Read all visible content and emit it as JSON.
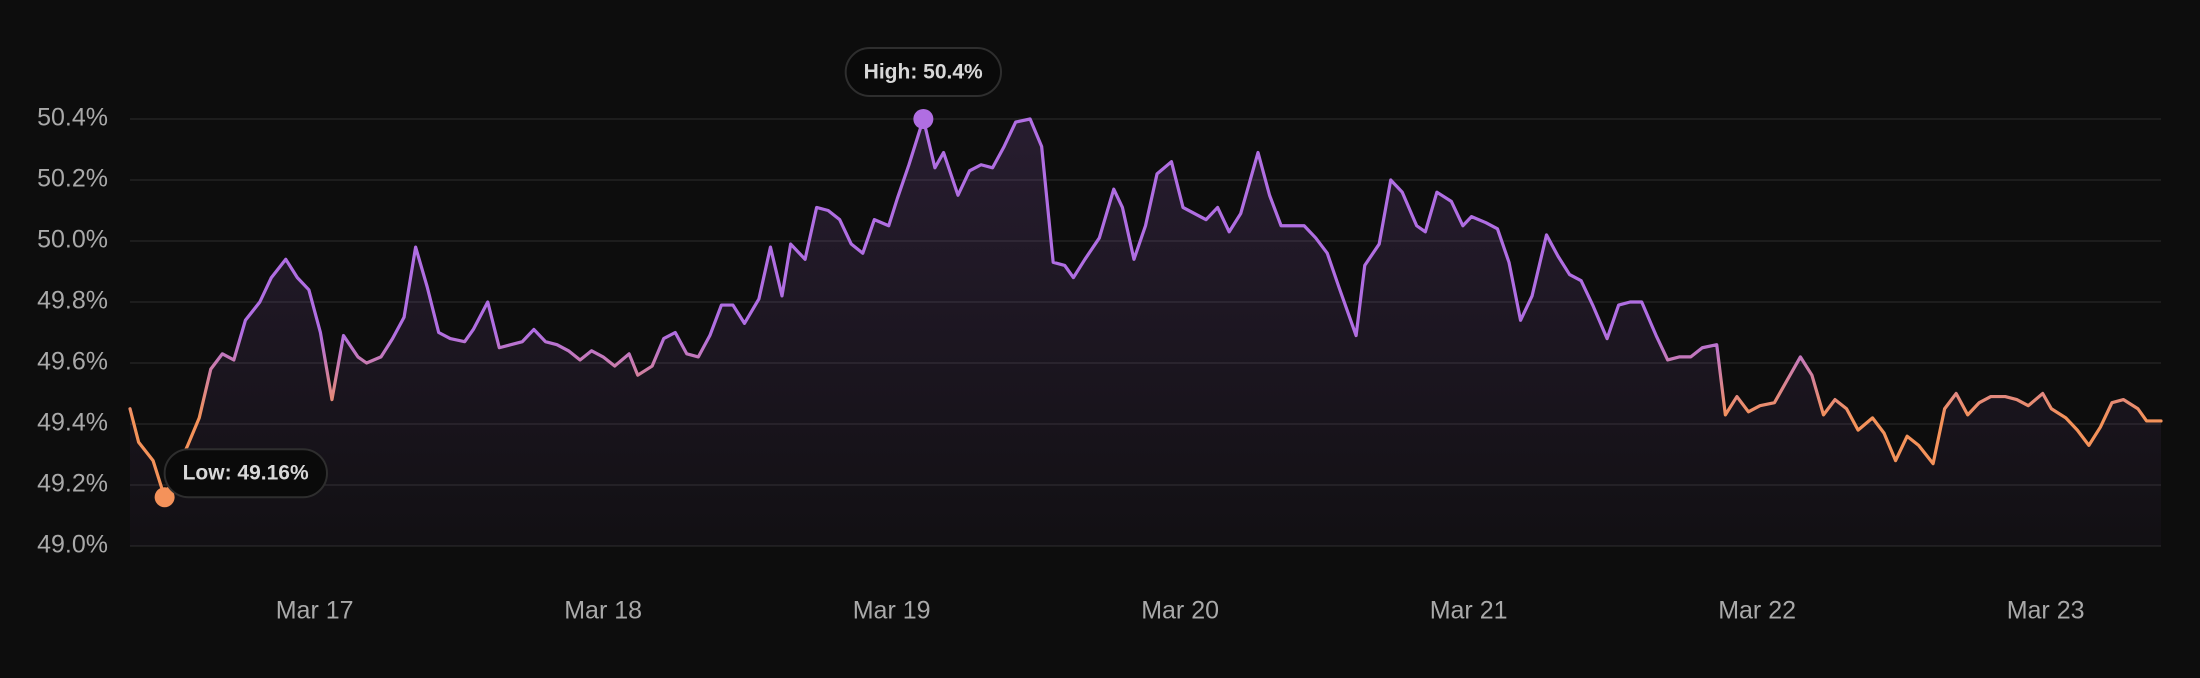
{
  "chart_data": {
    "type": "line",
    "x": [
      16.36,
      16.39,
      16.44,
      16.48,
      16.56,
      16.6,
      16.64,
      16.68,
      16.72,
      16.76,
      16.81,
      16.85,
      16.9,
      16.94,
      16.98,
      17.02,
      17.06,
      17.1,
      17.15,
      17.18,
      17.23,
      17.27,
      17.31,
      17.35,
      17.39,
      17.43,
      17.47,
      17.52,
      17.55,
      17.6,
      17.64,
      17.68,
      17.72,
      17.76,
      17.8,
      17.84,
      17.88,
      17.92,
      17.96,
      18.0,
      18.04,
      18.09,
      18.12,
      18.17,
      18.21,
      18.25,
      18.29,
      18.33,
      18.37,
      18.41,
      18.45,
      18.49,
      18.54,
      18.58,
      18.62,
      18.65,
      18.7,
      18.74,
      18.78,
      18.82,
      18.86,
      18.9,
      18.94,
      18.99,
      19.02,
      19.06,
      19.11,
      19.15,
      19.18,
      19.23,
      19.27,
      19.31,
      19.35,
      19.39,
      19.43,
      19.48,
      19.52,
      19.56,
      19.6,
      19.63,
      19.67,
      19.72,
      19.77,
      19.8,
      19.84,
      19.88,
      19.92,
      19.97,
      20.01,
      20.05,
      20.09,
      20.13,
      20.17,
      20.21,
      20.27,
      20.31,
      20.35,
      20.39,
      20.43,
      20.47,
      20.51,
      20.55,
      20.61,
      20.64,
      20.69,
      20.73,
      20.77,
      20.82,
      20.85,
      20.89,
      20.94,
      20.98,
      21.01,
      21.06,
      21.1,
      21.14,
      21.18,
      21.22,
      21.27,
      21.31,
      21.35,
      21.39,
      21.43,
      21.48,
      21.52,
      21.56,
      21.6,
      21.65,
      21.69,
      21.73,
      21.77,
      21.81,
      21.86,
      21.89,
      21.93,
      21.97,
      22.01,
      22.06,
      22.09,
      22.15,
      22.19,
      22.23,
      22.27,
      22.31,
      22.35,
      22.4,
      22.44,
      22.48,
      22.52,
      22.56,
      22.61,
      22.65,
      22.69,
      22.73,
      22.77,
      22.81,
      22.86,
      22.9,
      22.94,
      22.99,
      23.02,
      23.07,
      23.11,
      23.15,
      23.19,
      23.23,
      23.27,
      23.32,
      23.35,
      23.4
    ],
    "values": [
      49.45,
      49.34,
      49.28,
      49.16,
      49.33,
      49.42,
      49.58,
      49.63,
      49.61,
      49.74,
      49.8,
      49.88,
      49.94,
      49.88,
      49.84,
      49.7,
      49.48,
      49.69,
      49.62,
      49.6,
      49.62,
      49.68,
      49.75,
      49.98,
      49.85,
      49.7,
      49.68,
      49.67,
      49.71,
      49.8,
      49.65,
      49.66,
      49.67,
      49.71,
      49.67,
      49.66,
      49.64,
      49.61,
      49.64,
      49.62,
      49.59,
      49.63,
      49.56,
      49.59,
      49.68,
      49.7,
      49.63,
      49.62,
      49.69,
      49.79,
      49.79,
      49.73,
      49.81,
      49.98,
      49.82,
      49.99,
      49.94,
      50.11,
      50.1,
      50.07,
      49.99,
      49.96,
      50.07,
      50.05,
      50.14,
      50.25,
      50.4,
      50.24,
      50.29,
      50.15,
      50.23,
      50.25,
      50.24,
      50.31,
      50.39,
      50.4,
      50.31,
      49.93,
      49.92,
      49.88,
      49.94,
      50.01,
      50.17,
      50.11,
      49.94,
      50.05,
      50.22,
      50.26,
      50.11,
      50.09,
      50.07,
      50.11,
      50.03,
      50.09,
      50.29,
      50.15,
      50.05,
      50.05,
      50.05,
      50.01,
      49.96,
      49.85,
      49.69,
      49.92,
      49.99,
      50.2,
      50.16,
      50.05,
      50.03,
      50.16,
      50.13,
      50.05,
      50.08,
      50.06,
      50.04,
      49.93,
      49.74,
      49.82,
      50.02,
      49.95,
      49.89,
      49.87,
      49.79,
      49.68,
      49.79,
      49.8,
      49.8,
      49.69,
      49.61,
      49.62,
      49.62,
      49.65,
      49.66,
      49.43,
      49.49,
      49.44,
      49.46,
      49.47,
      49.52,
      49.62,
      49.56,
      49.43,
      49.48,
      49.45,
      49.38,
      49.42,
      49.37,
      49.28,
      49.36,
      49.33,
      49.27,
      49.45,
      49.5,
      49.43,
      49.47,
      49.49,
      49.49,
      49.48,
      49.46,
      49.5,
      49.45,
      49.42,
      49.38,
      49.33,
      49.39,
      49.47,
      49.48,
      49.45,
      49.41,
      49.41
    ],
    "colors": [
      "#f4925a",
      "#b06ee2"
    ],
    "xlim": [
      16.36,
      23.4
    ],
    "xticks": [
      {
        "value": 17,
        "label": "Mar 17"
      },
      {
        "value": 18,
        "label": "Mar 18"
      },
      {
        "value": 19,
        "label": "Mar 19"
      },
      {
        "value": 20,
        "label": "Mar 20"
      },
      {
        "value": 21,
        "label": "Mar 21"
      },
      {
        "value": 22,
        "label": "Mar 22"
      },
      {
        "value": 23,
        "label": "Mar 23"
      }
    ],
    "ylim": [
      49.0,
      50.4
    ],
    "yticks": [
      {
        "value": 49.0,
        "label": "49.0%"
      },
      {
        "value": 49.2,
        "label": "49.2%"
      },
      {
        "value": 49.4,
        "label": "49.4%"
      },
      {
        "value": 49.6,
        "label": "49.6%"
      },
      {
        "value": 49.8,
        "label": "49.8%"
      },
      {
        "value": 50.0,
        "label": "50.0%"
      },
      {
        "value": 50.2,
        "label": "50.2%"
      },
      {
        "value": 50.4,
        "label": "50.4%"
      }
    ],
    "grid": true,
    "annotations": [
      {
        "label": "High: 50.4%",
        "x": 19.11,
        "y": 50.4
      },
      {
        "label": "Low: 49.16%",
        "x": 16.48,
        "y": 49.16
      }
    ]
  }
}
